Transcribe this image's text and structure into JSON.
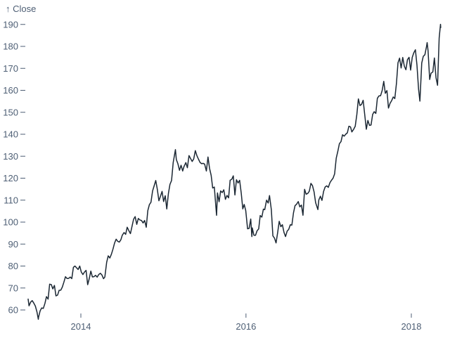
{
  "colors": {
    "line": "#1b2733",
    "axis_text": "#4d5e74",
    "background": "#ffffff"
  },
  "chart_data": {
    "type": "line",
    "title": "",
    "ylabel_display": "↑ Close",
    "ylabel": "Close",
    "xlabel": "",
    "grid": false,
    "legend": "none",
    "y_ticks": [
      60,
      70,
      80,
      90,
      100,
      110,
      120,
      130,
      140,
      150,
      160,
      170,
      180,
      190
    ],
    "x_ticks": [
      {
        "label": "2014",
        "date": "2014-01-01"
      },
      {
        "label": "2016",
        "date": "2016-01-01"
      },
      {
        "label": "2018",
        "date": "2018-01-01"
      }
    ],
    "x_range": [
      "2013-05-13",
      "2018-05-11"
    ],
    "y_axis_range": [
      60,
      190
    ],
    "series": [
      {
        "name": "Close",
        "points": [
          [
            "2013-05-13",
            64.96
          ],
          [
            "2013-05-17",
            61.89
          ],
          [
            "2013-05-24",
            63.59
          ],
          [
            "2013-05-31",
            64.25
          ],
          [
            "2013-06-07",
            63.12
          ],
          [
            "2013-06-14",
            61.75
          ],
          [
            "2013-06-21",
            59.07
          ],
          [
            "2013-06-27",
            55.79
          ],
          [
            "2013-06-28",
            56.65
          ],
          [
            "2013-07-05",
            59.63
          ],
          [
            "2013-07-12",
            60.93
          ],
          [
            "2013-07-19",
            60.71
          ],
          [
            "2013-07-26",
            62.99
          ],
          [
            "2013-08-02",
            66.08
          ],
          [
            "2013-08-09",
            64.92
          ],
          [
            "2013-08-16",
            71.76
          ],
          [
            "2013-08-23",
            71.57
          ],
          [
            "2013-08-30",
            69.6
          ],
          [
            "2013-09-06",
            71.17
          ],
          [
            "2013-09-13",
            66.41
          ],
          [
            "2013-09-20",
            66.77
          ],
          [
            "2013-09-27",
            68.96
          ],
          [
            "2013-10-04",
            69.0
          ],
          [
            "2013-10-11",
            70.4
          ],
          [
            "2013-10-18",
            72.7
          ],
          [
            "2013-10-25",
            75.14
          ],
          [
            "2013-11-01",
            74.29
          ],
          [
            "2013-11-08",
            74.37
          ],
          [
            "2013-11-15",
            74.99
          ],
          [
            "2013-11-22",
            74.26
          ],
          [
            "2013-11-29",
            79.44
          ],
          [
            "2013-12-06",
            80.0
          ],
          [
            "2013-12-13",
            79.2
          ],
          [
            "2013-12-20",
            78.43
          ],
          [
            "2013-12-27",
            80.01
          ],
          [
            "2014-01-03",
            77.28
          ],
          [
            "2014-01-10",
            76.13
          ],
          [
            "2014-01-17",
            77.24
          ],
          [
            "2014-01-24",
            78.01
          ],
          [
            "2014-01-31",
            71.51
          ],
          [
            "2014-02-07",
            74.24
          ],
          [
            "2014-02-14",
            77.71
          ],
          [
            "2014-02-21",
            75.04
          ],
          [
            "2014-02-28",
            75.18
          ],
          [
            "2014-03-07",
            75.77
          ],
          [
            "2014-03-14",
            74.96
          ],
          [
            "2014-03-21",
            76.12
          ],
          [
            "2014-03-28",
            76.69
          ],
          [
            "2014-04-04",
            75.97
          ],
          [
            "2014-04-11",
            74.23
          ],
          [
            "2014-04-17",
            74.99
          ],
          [
            "2014-04-25",
            81.71
          ],
          [
            "2014-05-02",
            84.65
          ],
          [
            "2014-05-09",
            83.65
          ],
          [
            "2014-05-16",
            85.36
          ],
          [
            "2014-05-23",
            87.73
          ],
          [
            "2014-05-30",
            90.43
          ],
          [
            "2014-06-06",
            92.22
          ],
          [
            "2014-06-13",
            91.28
          ],
          [
            "2014-06-20",
            90.91
          ],
          [
            "2014-06-27",
            91.98
          ],
          [
            "2014-07-03",
            94.03
          ],
          [
            "2014-07-11",
            95.22
          ],
          [
            "2014-07-18",
            94.43
          ],
          [
            "2014-07-25",
            97.67
          ],
          [
            "2014-08-01",
            96.13
          ],
          [
            "2014-08-08",
            94.74
          ],
          [
            "2014-08-15",
            97.98
          ],
          [
            "2014-08-22",
            101.32
          ],
          [
            "2014-08-29",
            102.5
          ],
          [
            "2014-09-05",
            98.97
          ],
          [
            "2014-09-12",
            101.66
          ],
          [
            "2014-09-19",
            100.96
          ],
          [
            "2014-09-26",
            100.75
          ],
          [
            "2014-10-03",
            99.62
          ],
          [
            "2014-10-10",
            100.73
          ],
          [
            "2014-10-17",
            97.67
          ],
          [
            "2014-10-24",
            105.22
          ],
          [
            "2014-10-31",
            108.0
          ],
          [
            "2014-11-07",
            109.01
          ],
          [
            "2014-11-14",
            114.18
          ],
          [
            "2014-11-21",
            116.47
          ],
          [
            "2014-11-28",
            118.93
          ],
          [
            "2014-12-05",
            115.0
          ],
          [
            "2014-12-12",
            109.73
          ],
          [
            "2014-12-19",
            111.78
          ],
          [
            "2014-12-26",
            113.99
          ],
          [
            "2015-01-02",
            109.33
          ],
          [
            "2015-01-09",
            112.01
          ],
          [
            "2015-01-16",
            105.99
          ],
          [
            "2015-01-23",
            112.98
          ],
          [
            "2015-01-30",
            117.16
          ],
          [
            "2015-02-06",
            118.93
          ],
          [
            "2015-02-13",
            127.08
          ],
          [
            "2015-02-23",
            133.0
          ],
          [
            "2015-02-27",
            128.46
          ],
          [
            "2015-03-06",
            126.6
          ],
          [
            "2015-03-13",
            123.59
          ],
          [
            "2015-03-20",
            125.9
          ],
          [
            "2015-03-27",
            123.25
          ],
          [
            "2015-04-02",
            125.32
          ],
          [
            "2015-04-10",
            127.1
          ],
          [
            "2015-04-17",
            124.75
          ],
          [
            "2015-04-24",
            130.28
          ],
          [
            "2015-05-01",
            128.95
          ],
          [
            "2015-05-08",
            127.62
          ],
          [
            "2015-05-15",
            128.77
          ],
          [
            "2015-05-22",
            132.54
          ],
          [
            "2015-05-29",
            130.28
          ],
          [
            "2015-06-05",
            128.65
          ],
          [
            "2015-06-12",
            127.17
          ],
          [
            "2015-06-19",
            126.6
          ],
          [
            "2015-06-26",
            126.75
          ],
          [
            "2015-07-02",
            126.44
          ],
          [
            "2015-07-10",
            123.28
          ],
          [
            "2015-07-17",
            129.62
          ],
          [
            "2015-07-24",
            124.5
          ],
          [
            "2015-07-31",
            121.3
          ],
          [
            "2015-08-07",
            115.52
          ],
          [
            "2015-08-14",
            115.96
          ],
          [
            "2015-08-24",
            103.12
          ],
          [
            "2015-08-28",
            113.29
          ],
          [
            "2015-09-04",
            109.27
          ],
          [
            "2015-09-11",
            114.21
          ],
          [
            "2015-09-18",
            113.45
          ],
          [
            "2015-09-25",
            114.71
          ],
          [
            "2015-10-02",
            110.38
          ],
          [
            "2015-10-09",
            112.12
          ],
          [
            "2015-10-16",
            111.04
          ],
          [
            "2015-10-23",
            119.08
          ],
          [
            "2015-10-30",
            119.5
          ],
          [
            "2015-11-06",
            121.06
          ],
          [
            "2015-11-13",
            112.34
          ],
          [
            "2015-11-20",
            119.3
          ],
          [
            "2015-11-27",
            117.81
          ],
          [
            "2015-12-04",
            119.03
          ],
          [
            "2015-12-11",
            113.18
          ],
          [
            "2015-12-18",
            106.03
          ],
          [
            "2015-12-24",
            108.03
          ],
          [
            "2015-12-31",
            105.26
          ],
          [
            "2016-01-08",
            96.96
          ],
          [
            "2016-01-15",
            97.13
          ],
          [
            "2016-01-22",
            101.42
          ],
          [
            "2016-01-27",
            93.42
          ],
          [
            "2016-01-29",
            97.34
          ],
          [
            "2016-02-05",
            94.02
          ],
          [
            "2016-02-12",
            93.99
          ],
          [
            "2016-02-19",
            96.04
          ],
          [
            "2016-02-26",
            96.91
          ],
          [
            "2016-03-04",
            103.01
          ],
          [
            "2016-03-11",
            102.26
          ],
          [
            "2016-03-18",
            105.92
          ],
          [
            "2016-03-24",
            105.67
          ],
          [
            "2016-04-01",
            109.99
          ],
          [
            "2016-04-08",
            108.66
          ],
          [
            "2016-04-14",
            112.1
          ],
          [
            "2016-04-22",
            105.68
          ],
          [
            "2016-04-29",
            93.74
          ],
          [
            "2016-05-06",
            92.72
          ],
          [
            "2016-05-13",
            90.52
          ],
          [
            "2016-05-20",
            95.22
          ],
          [
            "2016-05-27",
            100.35
          ],
          [
            "2016-06-03",
            97.92
          ],
          [
            "2016-06-10",
            98.83
          ],
          [
            "2016-06-17",
            95.33
          ],
          [
            "2016-06-24",
            93.4
          ],
          [
            "2016-07-01",
            95.89
          ],
          [
            "2016-07-08",
            96.68
          ],
          [
            "2016-07-15",
            98.78
          ],
          [
            "2016-07-22",
            98.66
          ],
          [
            "2016-07-29",
            104.21
          ],
          [
            "2016-08-05",
            107.48
          ],
          [
            "2016-08-12",
            108.18
          ],
          [
            "2016-08-19",
            109.36
          ],
          [
            "2016-08-26",
            106.94
          ],
          [
            "2016-09-02",
            107.73
          ],
          [
            "2016-09-09",
            103.13
          ],
          [
            "2016-09-16",
            114.92
          ],
          [
            "2016-09-23",
            112.71
          ],
          [
            "2016-09-30",
            113.05
          ],
          [
            "2016-10-07",
            114.06
          ],
          [
            "2016-10-14",
            117.63
          ],
          [
            "2016-10-21",
            116.6
          ],
          [
            "2016-10-28",
            113.72
          ],
          [
            "2016-11-04",
            108.84
          ],
          [
            "2016-11-14",
            105.71
          ],
          [
            "2016-11-18",
            110.06
          ],
          [
            "2016-11-25",
            111.79
          ],
          [
            "2016-12-02",
            109.9
          ],
          [
            "2016-12-09",
            113.95
          ],
          [
            "2016-12-16",
            115.97
          ],
          [
            "2016-12-23",
            116.52
          ],
          [
            "2016-12-30",
            115.82
          ],
          [
            "2017-01-06",
            117.91
          ],
          [
            "2017-01-13",
            119.04
          ],
          [
            "2017-01-20",
            120.0
          ],
          [
            "2017-01-27",
            121.95
          ],
          [
            "2017-02-03",
            129.08
          ],
          [
            "2017-02-10",
            132.12
          ],
          [
            "2017-02-17",
            135.72
          ],
          [
            "2017-02-24",
            136.66
          ],
          [
            "2017-03-03",
            139.78
          ],
          [
            "2017-03-10",
            139.14
          ],
          [
            "2017-03-17",
            139.99
          ],
          [
            "2017-03-24",
            140.64
          ],
          [
            "2017-03-31",
            143.66
          ],
          [
            "2017-04-07",
            143.34
          ],
          [
            "2017-04-13",
            141.05
          ],
          [
            "2017-04-21",
            142.27
          ],
          [
            "2017-04-28",
            143.65
          ],
          [
            "2017-05-05",
            148.96
          ],
          [
            "2017-05-12",
            156.1
          ],
          [
            "2017-05-19",
            153.06
          ],
          [
            "2017-05-26",
            153.61
          ],
          [
            "2017-06-02",
            155.45
          ],
          [
            "2017-06-09",
            148.98
          ],
          [
            "2017-06-16",
            142.27
          ],
          [
            "2017-06-23",
            146.28
          ],
          [
            "2017-06-30",
            144.02
          ],
          [
            "2017-07-07",
            144.18
          ],
          [
            "2017-07-14",
            149.04
          ],
          [
            "2017-07-21",
            150.27
          ],
          [
            "2017-07-28",
            149.5
          ],
          [
            "2017-08-04",
            156.39
          ],
          [
            "2017-08-11",
            157.48
          ],
          [
            "2017-08-18",
            157.5
          ],
          [
            "2017-08-25",
            159.86
          ],
          [
            "2017-09-01",
            164.05
          ],
          [
            "2017-09-08",
            158.63
          ],
          [
            "2017-09-15",
            159.88
          ],
          [
            "2017-09-22",
            151.89
          ],
          [
            "2017-09-29",
            154.12
          ],
          [
            "2017-10-06",
            155.3
          ],
          [
            "2017-10-13",
            156.99
          ],
          [
            "2017-10-20",
            156.25
          ],
          [
            "2017-10-27",
            163.05
          ],
          [
            "2017-11-03",
            172.5
          ],
          [
            "2017-11-10",
            174.67
          ],
          [
            "2017-11-17",
            170.15
          ],
          [
            "2017-11-24",
            174.97
          ],
          [
            "2017-12-01",
            171.05
          ],
          [
            "2017-12-08",
            169.37
          ],
          [
            "2017-12-15",
            173.97
          ],
          [
            "2017-12-22",
            175.01
          ],
          [
            "2017-12-29",
            169.23
          ],
          [
            "2018-01-05",
            175.0
          ],
          [
            "2018-01-12",
            177.09
          ],
          [
            "2018-01-19",
            178.46
          ],
          [
            "2018-01-26",
            171.51
          ],
          [
            "2018-02-02",
            160.5
          ],
          [
            "2018-02-08",
            155.07
          ],
          [
            "2018-02-16",
            172.43
          ],
          [
            "2018-02-23",
            175.5
          ],
          [
            "2018-03-02",
            176.21
          ],
          [
            "2018-03-09",
            179.98
          ],
          [
            "2018-03-12",
            181.72
          ],
          [
            "2018-03-16",
            178.02
          ],
          [
            "2018-03-23",
            164.94
          ],
          [
            "2018-03-29",
            167.78
          ],
          [
            "2018-04-06",
            168.38
          ],
          [
            "2018-04-13",
            174.73
          ],
          [
            "2018-04-20",
            165.72
          ],
          [
            "2018-04-27",
            162.32
          ],
          [
            "2018-05-04",
            183.83
          ],
          [
            "2018-05-10",
            190.04
          ],
          [
            "2018-05-11",
            188.59
          ]
        ]
      }
    ]
  }
}
